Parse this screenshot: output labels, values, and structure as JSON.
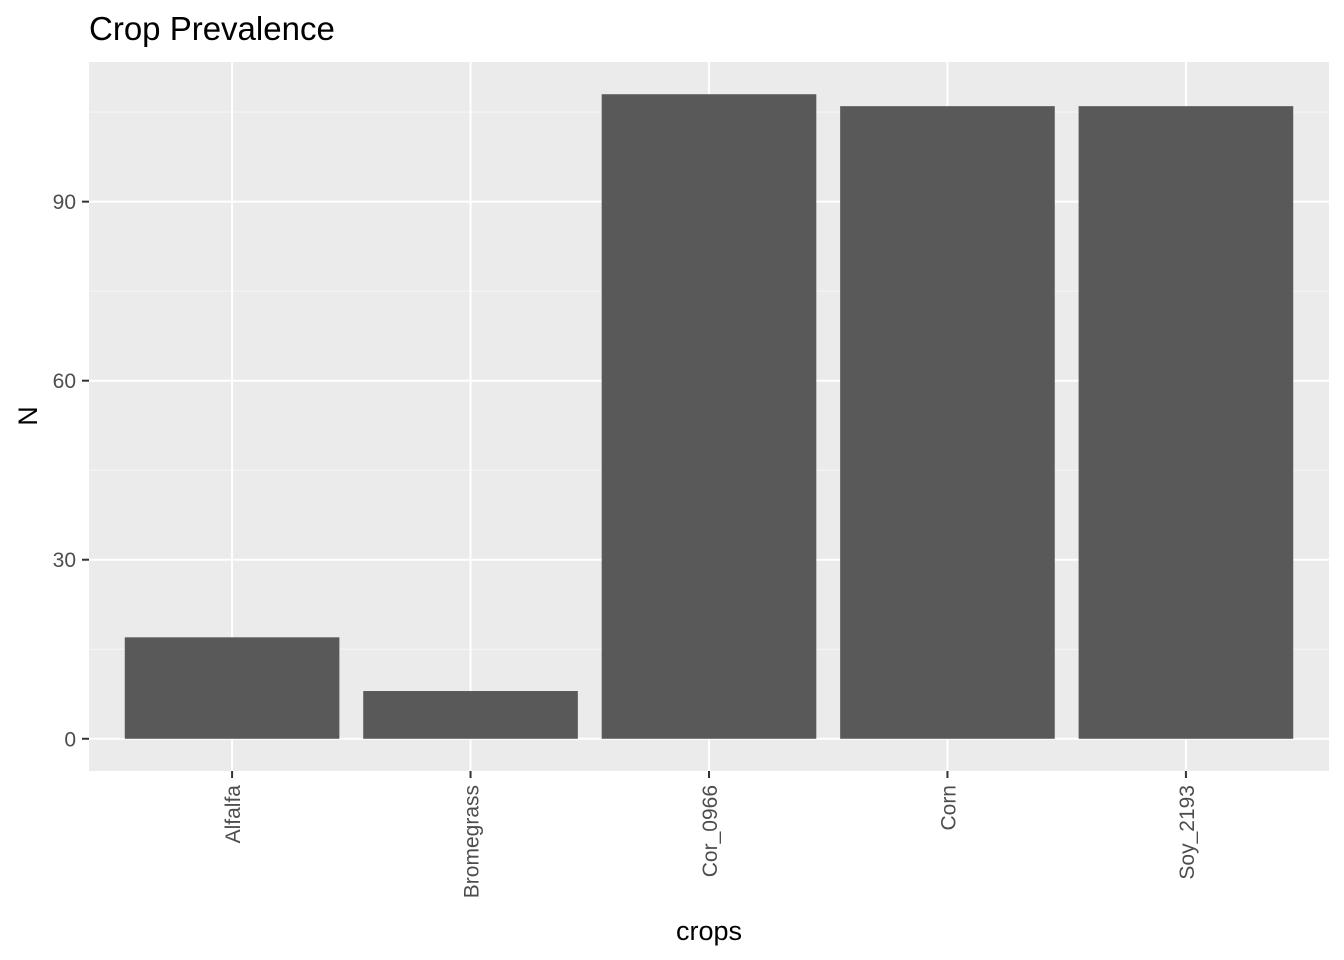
{
  "chart_data": {
    "type": "bar",
    "title": "Crop Prevalence",
    "xlabel": "crops",
    "ylabel": "N",
    "categories": [
      "Alfalfa",
      "Bromegrass",
      "Cor_0966",
      "Corn",
      "Soy_2193"
    ],
    "values": [
      17,
      8,
      108,
      106,
      106
    ],
    "ylim": [
      -5.4,
      113.4
    ],
    "yticks": [
      0,
      30,
      60,
      90
    ],
    "ytick_labels": [
      "0",
      "30",
      "60",
      "90"
    ],
    "grid": true,
    "legend": "none",
    "colors": {
      "bar": "#595959",
      "panel": "#ebebeb",
      "grid_major": "#ffffff",
      "grid_minor": "#f5f5f5",
      "tick": "#333333",
      "tick_label": "#4d4d4d"
    }
  }
}
